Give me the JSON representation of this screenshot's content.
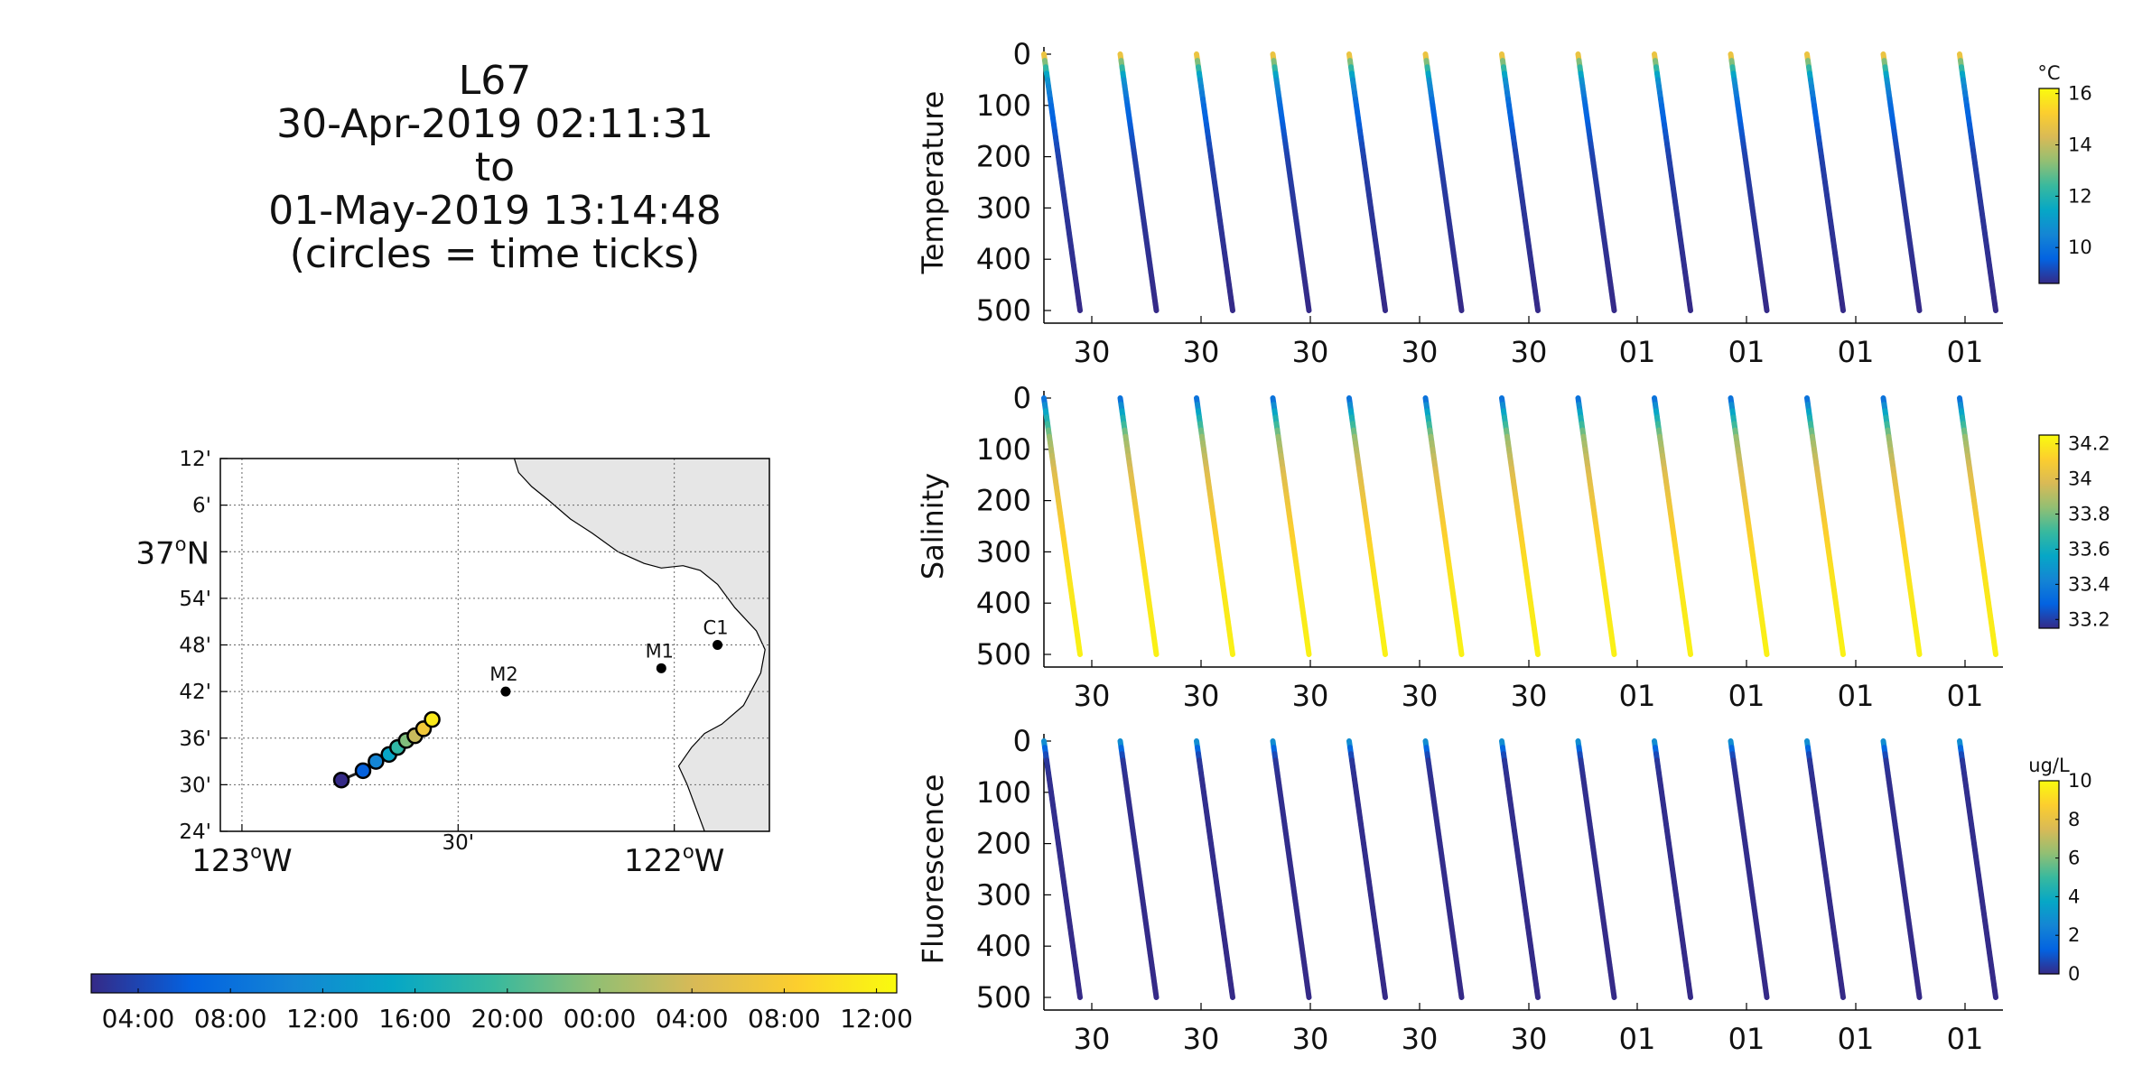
{
  "title_lines": [
    "L67",
    "30-Apr-2019 02:11:31",
    "to",
    "01-May-2019 13:14:48",
    "(circles = time ticks)"
  ],
  "colors": {
    "parula": [
      "#352a87",
      "#0363e1",
      "#1485d4",
      "#06a7c6",
      "#38b99e",
      "#92bf73",
      "#d9ba56",
      "#fcce2e",
      "#f9fb0e"
    ],
    "land": "#e6e6e6",
    "axis": "#000000"
  },
  "map": {
    "lat_ticks": [
      "12'",
      "6'",
      "37°N",
      "54'",
      "48'",
      "42'",
      "36'",
      "30'",
      "24'"
    ],
    "lon_ticks": [
      "123°W",
      "30'",
      "122°W"
    ],
    "grid": true,
    "stations": [
      {
        "name": "M2",
        "lon": -122.39,
        "lat": 36.7
      },
      {
        "name": "M1",
        "lon": -122.03,
        "lat": 36.75
      },
      {
        "name": "C1",
        "lon": -121.9,
        "lat": 36.8
      }
    ],
    "track": [
      {
        "lon": -122.77,
        "lat": 36.51,
        "t": 0.0
      },
      {
        "lon": -122.72,
        "lat": 36.53,
        "t": 0.12
      },
      {
        "lon": -122.69,
        "lat": 36.55,
        "t": 0.25
      },
      {
        "lon": -122.66,
        "lat": 36.565,
        "t": 0.37
      },
      {
        "lon": -122.64,
        "lat": 36.58,
        "t": 0.48
      },
      {
        "lon": -122.62,
        "lat": 36.595,
        "t": 0.6
      },
      {
        "lon": -122.6,
        "lat": 36.605,
        "t": 0.72
      },
      {
        "lon": -122.58,
        "lat": 36.62,
        "t": 0.84
      },
      {
        "lon": -122.56,
        "lat": 36.64,
        "t": 0.95
      }
    ]
  },
  "time_colorbar": {
    "tick_labels": [
      "04:00",
      "08:00",
      "12:00",
      "16:00",
      "20:00",
      "00:00",
      "04:00",
      "08:00",
      "12:00"
    ]
  },
  "chart_data": [
    {
      "type": "scatter",
      "ylabel": "Temperature",
      "ylim": [
        500,
        0
      ],
      "yticks": [
        "0",
        "100",
        "200",
        "300",
        "400",
        "500"
      ],
      "xticks": [
        "30",
        "30",
        "30",
        "30",
        "30",
        "01",
        "01",
        "01",
        "01"
      ],
      "colorbar": {
        "unit": "°C",
        "ticks": [
          "16",
          "14",
          "12",
          "10"
        ],
        "range": [
          8.6,
          16.2
        ]
      },
      "profile": {
        "depth": [
          0,
          20,
          50,
          100,
          200,
          300,
          500
        ],
        "value": [
          15.6,
          13.0,
          11.0,
          9.8,
          9.0,
          8.8,
          8.6
        ]
      },
      "dives": 13
    },
    {
      "type": "scatter",
      "ylabel": "Salinity",
      "ylim": [
        500,
        0
      ],
      "yticks": [
        "0",
        "100",
        "200",
        "300",
        "400",
        "500"
      ],
      "xticks": [
        "30",
        "30",
        "30",
        "30",
        "30",
        "01",
        "01",
        "01",
        "01"
      ],
      "colorbar": {
        "unit": "",
        "ticks": [
          "34.2",
          "34",
          "33.8",
          "33.6",
          "33.4",
          "33.2"
        ],
        "range": [
          33.15,
          34.25
        ]
      },
      "profile": {
        "depth": [
          0,
          30,
          80,
          150,
          250,
          350,
          500
        ],
        "value": [
          33.3,
          33.55,
          33.85,
          34.0,
          34.1,
          34.18,
          34.22
        ]
      },
      "dives": 13
    },
    {
      "type": "scatter",
      "ylabel": "Fluorescence",
      "ylim": [
        500,
        0
      ],
      "yticks": [
        "0",
        "100",
        "200",
        "300",
        "400",
        "500"
      ],
      "xticks": [
        "30",
        "30",
        "30",
        "30",
        "30",
        "01",
        "01",
        "01",
        "01"
      ],
      "colorbar": {
        "unit": "ug/L",
        "ticks": [
          "10",
          "8",
          "6",
          "4",
          "2",
          "0"
        ],
        "range": [
          0,
          10
        ]
      },
      "profile": {
        "depth": [
          0,
          20,
          40,
          80,
          500
        ],
        "value": [
          3.5,
          1.2,
          0.3,
          0.1,
          0.0
        ]
      },
      "dives": 13
    }
  ]
}
